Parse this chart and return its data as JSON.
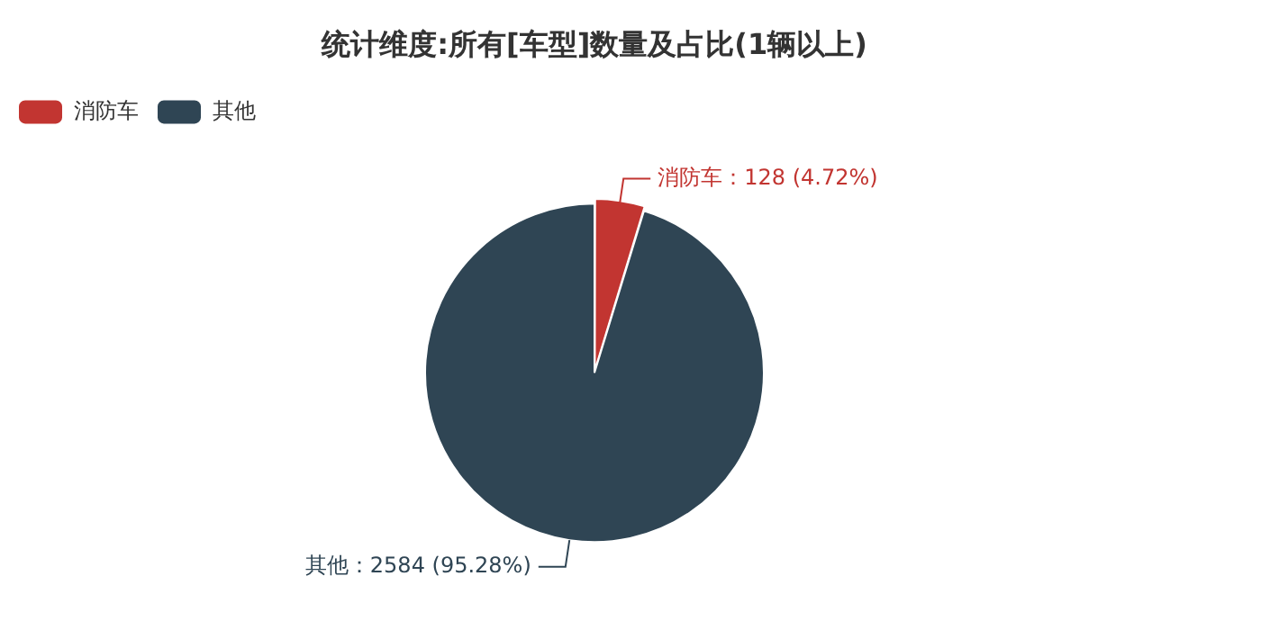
{
  "chart_data": {
    "type": "pie",
    "title": "统计维度:所有[车型]数量及占比(1辆以上)",
    "categories": [
      "消防车",
      "其他"
    ],
    "values": [
      128,
      2584
    ],
    "colors": [
      "#c23531",
      "#2f4554"
    ],
    "value_labels": [
      "消防车：128 (4.72%)",
      "其他：2584 (95.28%)"
    ],
    "legend": "top left"
  }
}
